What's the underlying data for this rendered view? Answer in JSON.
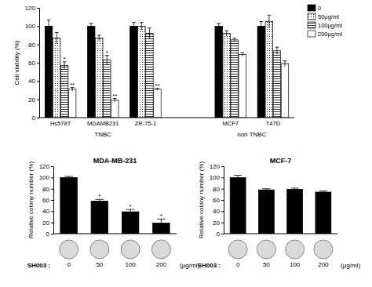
{
  "chart_data": [
    {
      "type": "bar",
      "y_label": "Cell viability (%)",
      "categories": [
        "Hs578T",
        "MDAMB231",
        "ZR-75-1",
        null,
        "MCF7",
        "T47D"
      ],
      "groups": [
        {
          "label": "TNBC",
          "from": "Hs578T",
          "to": "ZR-75-1"
        },
        {
          "label": "non TNBC",
          "from": "MCF7",
          "to": "T47D"
        }
      ],
      "series": [
        {
          "name": "0",
          "color": "#000000",
          "values": [
            100,
            100,
            100,
            null,
            100,
            100
          ],
          "errors": [
            7,
            3,
            4,
            null,
            3,
            5
          ],
          "significance": [
            null,
            null,
            null,
            null,
            null,
            null
          ]
        },
        {
          "name": "50µg/ml",
          "color": "#ffffff",
          "values": [
            87,
            87,
            100,
            null,
            92,
            105
          ],
          "errors": [
            6,
            3,
            4,
            null,
            3,
            7
          ],
          "significance": [
            null,
            null,
            null,
            null,
            null,
            null
          ]
        },
        {
          "name": "100µg/ml",
          "color": "#ffffff",
          "values": [
            57,
            63,
            92,
            null,
            85,
            73
          ],
          "errors": [
            4,
            5,
            6,
            null,
            2,
            4
          ],
          "significance": [
            "*",
            "*",
            null,
            null,
            null,
            null
          ]
        },
        {
          "name": "200µg/ml",
          "color": "#ffffff",
          "values": [
            31,
            19,
            31,
            null,
            69,
            59
          ],
          "errors": [
            2,
            2,
            1,
            null,
            2,
            3
          ],
          "significance": [
            "**",
            "**",
            "**",
            null,
            null,
            null
          ]
        }
      ],
      "ylim": [
        0,
        120
      ],
      "yticks": [
        0,
        20,
        40,
        60,
        80,
        100,
        120
      ],
      "legend": "top-right"
    },
    {
      "type": "bar",
      "title": "MDA-MB-231",
      "y_label": "Relative colony number (%)",
      "x_label": "SH003 :",
      "x_unit": "(µg/ml)",
      "categories": [
        "0",
        "50",
        "100",
        "200"
      ],
      "values": [
        100,
        58,
        39,
        19
      ],
      "errors": [
        2,
        3,
        4,
        7
      ],
      "significance": [
        null,
        "*",
        "*",
        "*"
      ],
      "color": "#000000",
      "ylim": [
        0,
        120
      ],
      "yticks": [
        0,
        20,
        40,
        60,
        80,
        100,
        120
      ]
    },
    {
      "type": "bar",
      "title": "MCF-7",
      "y_label": "Relative colony number (%)",
      "x_label": "SH003 :",
      "x_unit": "(µg/ml)",
      "categories": [
        "0",
        "50",
        "100",
        "200"
      ],
      "values": [
        100,
        78,
        79,
        74
      ],
      "errors": [
        4,
        2,
        2,
        2
      ],
      "significance": [
        null,
        null,
        null,
        null
      ],
      "color": "#000000",
      "ylim": [
        0,
        120
      ],
      "yticks": [
        0,
        20,
        40,
        60,
        80,
        100,
        120
      ]
    }
  ]
}
